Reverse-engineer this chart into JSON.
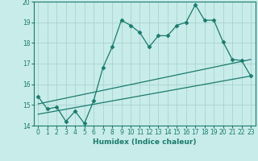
{
  "xlabel": "Humidex (Indice chaleur)",
  "background_color": "#c8ece9",
  "grid_color": "#a8d4d0",
  "line_color": "#1a7a6e",
  "xlim": [
    -0.5,
    23.5
  ],
  "ylim": [
    14,
    20
  ],
  "xticks": [
    0,
    1,
    2,
    3,
    4,
    5,
    6,
    7,
    8,
    9,
    10,
    11,
    12,
    13,
    14,
    15,
    16,
    17,
    18,
    19,
    20,
    21,
    22,
    23
  ],
  "yticks": [
    14,
    15,
    16,
    17,
    18,
    19,
    20
  ],
  "line1_x": [
    0,
    1,
    2,
    3,
    4,
    5,
    6,
    7,
    8,
    9,
    10,
    11,
    12,
    13,
    14,
    15,
    16,
    17,
    18,
    19,
    20,
    21,
    22,
    23
  ],
  "line1_y": [
    15.4,
    14.8,
    14.9,
    14.2,
    14.7,
    14.1,
    15.2,
    16.8,
    17.8,
    19.1,
    18.85,
    18.5,
    17.8,
    18.35,
    18.35,
    18.85,
    19.0,
    19.85,
    19.1,
    19.1,
    18.05,
    17.2,
    17.15,
    16.4
  ],
  "line2_x": [
    0,
    23
  ],
  "line2_y": [
    15.05,
    17.2
  ],
  "line3_x": [
    0,
    23
  ],
  "line3_y": [
    14.55,
    16.4
  ]
}
